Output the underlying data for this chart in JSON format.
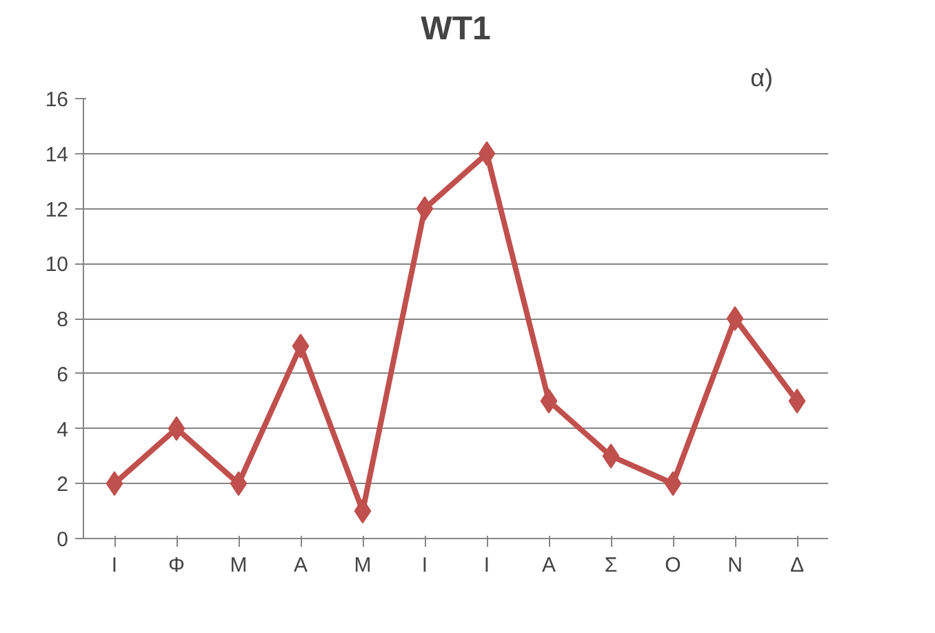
{
  "chart_data": {
    "type": "line",
    "title": "WT1",
    "annotations": [
      "α)"
    ],
    "categories": [
      "Ι",
      "Φ",
      "Μ",
      "Α",
      "Μ",
      "Ι",
      "Ι",
      "Α",
      "Σ",
      "Ο",
      "Ν",
      "Δ"
    ],
    "series": [
      {
        "color": "#c0504d",
        "values": [
          2,
          4,
          2,
          7,
          1,
          12,
          14,
          5,
          3,
          2,
          8,
          5
        ]
      }
    ],
    "ylim": [
      0,
      16
    ],
    "yticks": [
      0,
      2,
      4,
      6,
      8,
      10,
      12,
      14,
      16
    ],
    "grid": "y",
    "marker": "diamond",
    "line_style": "solid"
  }
}
